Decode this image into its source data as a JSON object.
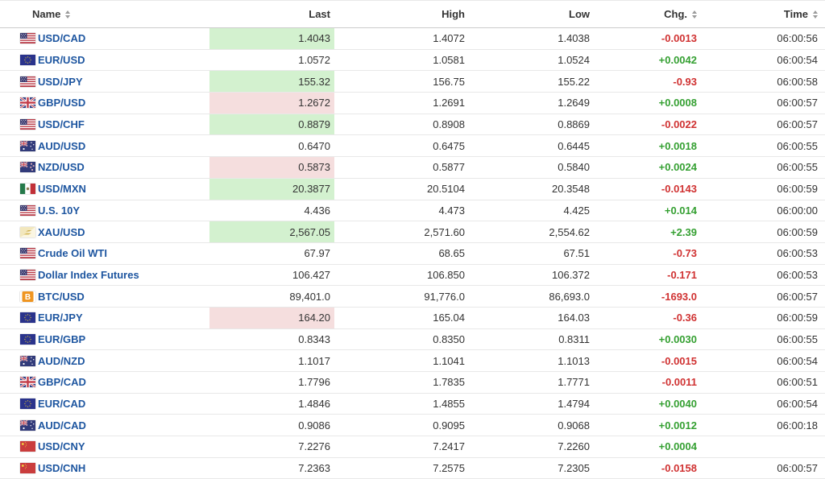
{
  "colors": {
    "name_link": "#1e56a0",
    "positive": "#35a032",
    "negative": "#d03232",
    "highlight_green": "#d3f1cf",
    "highlight_pink": "#f5dede",
    "header_text": "#333333",
    "value_text": "#333333"
  },
  "header": {
    "columns": [
      {
        "label": "Name",
        "sortable": true,
        "align": "left"
      },
      {
        "label": "Last",
        "sortable": false,
        "align": "right"
      },
      {
        "label": "High",
        "sortable": false,
        "align": "right"
      },
      {
        "label": "Low",
        "sortable": false,
        "align": "right"
      },
      {
        "label": "Chg.",
        "sortable": true,
        "align": "right"
      },
      {
        "label": "Time",
        "sortable": true,
        "align": "right"
      }
    ]
  },
  "rows": [
    {
      "flag": "us-flag",
      "name": "USD/CAD",
      "last": "1.4043",
      "highlight": "green",
      "high": "1.4072",
      "low": "1.4038",
      "chg": "-0.0013",
      "direction": "down",
      "time": "06:00:56"
    },
    {
      "flag": "eu-flag",
      "name": "EUR/USD",
      "last": "1.0572",
      "highlight": "",
      "high": "1.0581",
      "low": "1.0524",
      "chg": "+0.0042",
      "direction": "up",
      "time": "06:00:54"
    },
    {
      "flag": "us-flag",
      "name": "USD/JPY",
      "last": "155.32",
      "highlight": "green",
      "high": "156.75",
      "low": "155.22",
      "chg": "-0.93",
      "direction": "down",
      "time": "06:00:58"
    },
    {
      "flag": "uk-flag",
      "name": "GBP/USD",
      "last": "1.2672",
      "highlight": "pink",
      "high": "1.2691",
      "low": "1.2649",
      "chg": "+0.0008",
      "direction": "up",
      "time": "06:00:57"
    },
    {
      "flag": "us-flag",
      "name": "USD/CHF",
      "last": "0.8879",
      "highlight": "green",
      "high": "0.8908",
      "low": "0.8869",
      "chg": "-0.0022",
      "direction": "down",
      "time": "06:00:57"
    },
    {
      "flag": "australia-flag",
      "name": "AUD/USD",
      "last": "0.6470",
      "highlight": "",
      "high": "0.6475",
      "low": "0.6445",
      "chg": "+0.0018",
      "direction": "up",
      "time": "06:00:55"
    },
    {
      "flag": "new-zealand-flag",
      "name": "NZD/USD",
      "last": "0.5873",
      "highlight": "pink",
      "high": "0.5877",
      "low": "0.5840",
      "chg": "+0.0024",
      "direction": "up",
      "time": "06:00:55"
    },
    {
      "flag": "mexico-flag",
      "name": "USD/MXN",
      "last": "20.3877",
      "highlight": "green",
      "high": "20.5104",
      "low": "20.3548",
      "chg": "-0.0143",
      "direction": "down",
      "time": "06:00:59"
    },
    {
      "flag": "us-flag",
      "name": "U.S. 10Y",
      "last": "4.436",
      "highlight": "",
      "high": "4.473",
      "low": "4.425",
      "chg": "+0.014",
      "direction": "up",
      "time": "06:00:00"
    },
    {
      "flag": "gold-icon",
      "name": "XAU/USD",
      "last": "2,567.05",
      "highlight": "green",
      "high": "2,571.60",
      "low": "2,554.62",
      "chg": "+2.39",
      "direction": "up",
      "time": "06:00:59"
    },
    {
      "flag": "us-flag",
      "name": "Crude Oil WTI",
      "last": "67.97",
      "highlight": "",
      "high": "68.65",
      "low": "67.51",
      "chg": "-0.73",
      "direction": "down",
      "time": "06:00:53"
    },
    {
      "flag": "us-flag",
      "name": "Dollar Index Futures",
      "last": "106.427",
      "highlight": "",
      "high": "106.850",
      "low": "106.372",
      "chg": "-0.171",
      "direction": "down",
      "time": "06:00:53"
    },
    {
      "flag": "bitcoin-icon",
      "name": "BTC/USD",
      "last": "89,401.0",
      "highlight": "",
      "high": "91,776.0",
      "low": "86,693.0",
      "chg": "-1693.0",
      "direction": "down",
      "time": "06:00:57"
    },
    {
      "flag": "eu-flag",
      "name": "EUR/JPY",
      "last": "164.20",
      "highlight": "pink",
      "high": "165.04",
      "low": "164.03",
      "chg": "-0.36",
      "direction": "down",
      "time": "06:00:59"
    },
    {
      "flag": "eu-flag",
      "name": "EUR/GBP",
      "last": "0.8343",
      "highlight": "",
      "high": "0.8350",
      "low": "0.8311",
      "chg": "+0.0030",
      "direction": "up",
      "time": "06:00:55"
    },
    {
      "flag": "australia-flag",
      "name": "AUD/NZD",
      "last": "1.1017",
      "highlight": "",
      "high": "1.1041",
      "low": "1.1013",
      "chg": "-0.0015",
      "direction": "down",
      "time": "06:00:54"
    },
    {
      "flag": "uk-flag",
      "name": "GBP/CAD",
      "last": "1.7796",
      "highlight": "",
      "high": "1.7835",
      "low": "1.7771",
      "chg": "-0.0011",
      "direction": "down",
      "time": "06:00:51"
    },
    {
      "flag": "eu-flag",
      "name": "EUR/CAD",
      "last": "1.4846",
      "highlight": "",
      "high": "1.4855",
      "low": "1.4794",
      "chg": "+0.0040",
      "direction": "up",
      "time": "06:00:54"
    },
    {
      "flag": "australia-flag",
      "name": "AUD/CAD",
      "last": "0.9086",
      "highlight": "",
      "high": "0.9095",
      "low": "0.9068",
      "chg": "+0.0012",
      "direction": "up",
      "time": "06:00:18"
    },
    {
      "flag": "china-flag",
      "name": "USD/CNY",
      "last": "7.2276",
      "highlight": "",
      "high": "7.2417",
      "low": "7.2260",
      "chg": "+0.0004",
      "direction": "up",
      "time": ""
    },
    {
      "flag": "china-flag",
      "name": "USD/CNH",
      "last": "7.2363",
      "highlight": "",
      "high": "7.2575",
      "low": "7.2305",
      "chg": "-0.0158",
      "direction": "down",
      "time": "06:00:57"
    }
  ]
}
